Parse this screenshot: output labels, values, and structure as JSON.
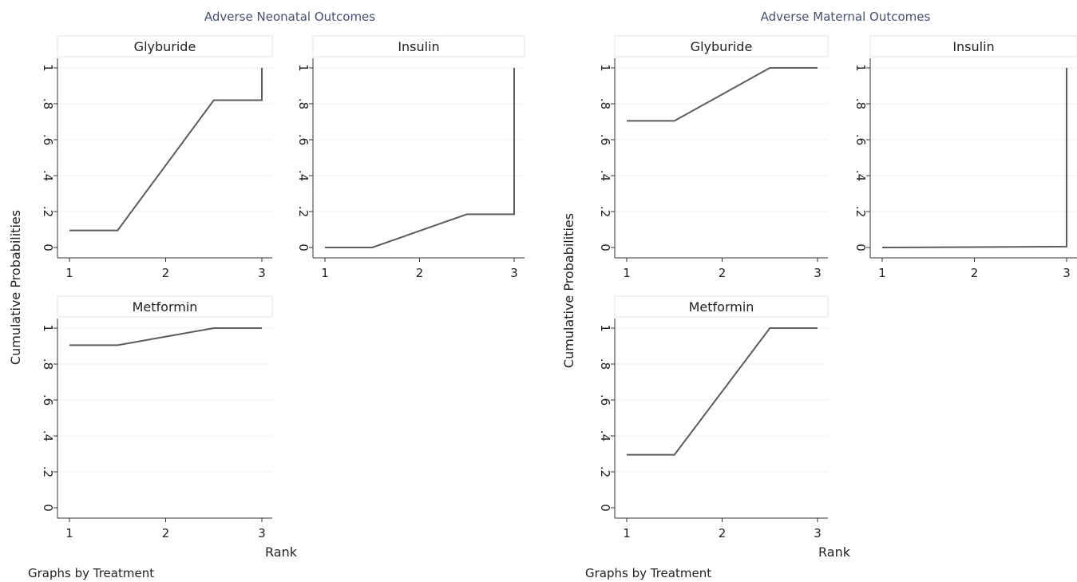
{
  "chart_data": [
    {
      "type": "line",
      "title": "Adverse Neonatal Outcomes",
      "ylabel": "Cumulative Probabilities",
      "xlabel": "Rank",
      "note": "Graphs by Treatment",
      "xlim": [
        1,
        3
      ],
      "ylim": [
        0,
        1
      ],
      "xticks": [
        "1",
        "2",
        "3"
      ],
      "yticks": [
        "0",
        ".2",
        ".4",
        ".6",
        ".8",
        "1"
      ],
      "panels": [
        {
          "name": "Glyburide",
          "x": [
            1,
            1.5,
            2.5,
            3,
            3
          ],
          "y": [
            0.095,
            0.095,
            0.82,
            0.82,
            1.0
          ]
        },
        {
          "name": "Insulin",
          "x": [
            1,
            1.5,
            2.5,
            3,
            3
          ],
          "y": [
            0.0,
            0.0,
            0.185,
            0.185,
            1.0
          ]
        },
        {
          "name": "Metformin",
          "x": [
            1,
            1.5,
            2.5,
            3
          ],
          "y": [
            0.905,
            0.905,
            1.0,
            1.0
          ]
        }
      ]
    },
    {
      "type": "line",
      "title": "Adverse Maternal Outcomes",
      "ylabel": "Cumulative Probabilities",
      "xlabel": "Rank",
      "note": "Graphs by Treatment",
      "xlim": [
        1,
        3
      ],
      "ylim": [
        0,
        1
      ],
      "xticks": [
        "1",
        "2",
        "3"
      ],
      "yticks": [
        "0",
        ".2",
        ".4",
        ".6",
        ".8",
        "1"
      ],
      "panels": [
        {
          "name": "Glyburide",
          "x": [
            1,
            1.5,
            2.5,
            3
          ],
          "y": [
            0.705,
            0.705,
            1.0,
            1.0
          ]
        },
        {
          "name": "Insulin",
          "x": [
            1,
            3,
            3
          ],
          "y": [
            0.0,
            0.005,
            1.0
          ]
        },
        {
          "name": "Metformin",
          "x": [
            1,
            1.5,
            2.5,
            3
          ],
          "y": [
            0.295,
            0.295,
            1.0,
            1.0
          ]
        }
      ]
    }
  ]
}
